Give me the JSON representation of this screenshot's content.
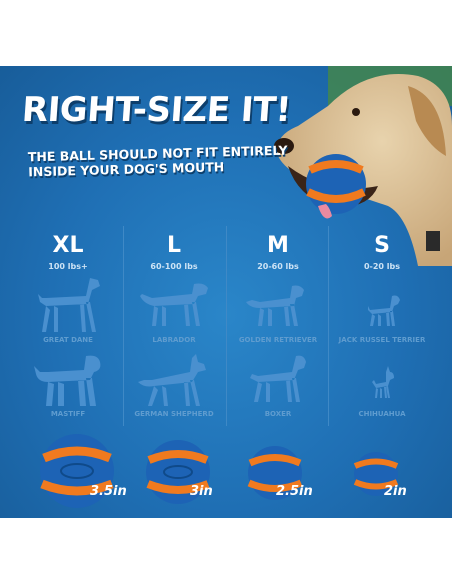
{
  "heading": {
    "title": "RIGHT-SIZE IT!",
    "subtitle_line1": "THE BALL SHOULD NOT FIT ENTIRELY",
    "subtitle_line2": "INSIDE YOUR DOG'S MOUTH"
  },
  "columns": [
    {
      "size": "XL",
      "weight": "100 lbs+",
      "breed_top": "GREAT DANE",
      "breed_bottom": "MASTIFF",
      "ball": "3.5in"
    },
    {
      "size": "L",
      "weight": "60-100 lbs",
      "breed_top": "LABRADOR",
      "breed_bottom": "GERMAN SHEPHERD",
      "ball": "3in"
    },
    {
      "size": "M",
      "weight": "20-60 lbs",
      "breed_top": "GOLDEN RETRIEVER",
      "breed_bottom": "BOXER",
      "ball": "2.5in"
    },
    {
      "size": "S",
      "weight": "0-20 lbs",
      "breed_top": "JACK RUSSEL TERRIER",
      "breed_bottom": "CHIHUAHUA",
      "ball": "2in"
    }
  ],
  "colors": {
    "background": "#1f6fb4",
    "ball_blue": "#1d63b5",
    "ball_orange": "#f07a1f",
    "silhouette": "#4a90cf"
  }
}
